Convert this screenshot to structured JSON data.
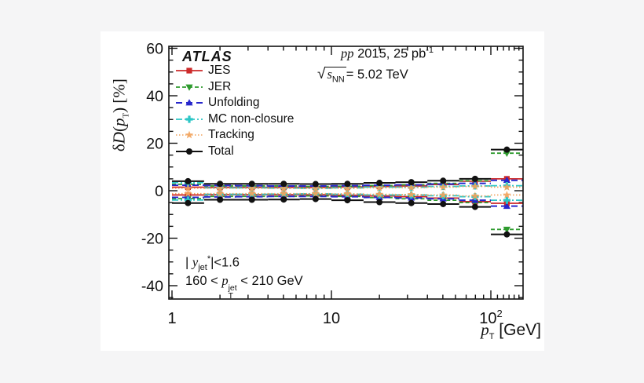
{
  "texts": {
    "atlas": "ATLAS",
    "lumi_pp": "pp",
    "lumi_rest": " 2015, 25 pb",
    "lumi_sup": "-1",
    "sqrt_sign": "√",
    "sqrt_s": "s",
    "sqrt_sub": "NN",
    "sqrt_rest": "= 5.02 TeV",
    "cut1_bar": "| ",
    "cut1_y": "y",
    "cut1_sub": "jet",
    "cut1_sup": "*",
    "cut1_rest": "|<1.6",
    "cut2_pre": "160 < ",
    "cut2_p": "p",
    "cut2_sup": "jet",
    "cut2_sub": "T",
    "cut2_rest": " < 210 GeV",
    "ylabel_delta": "δ",
    "ylabel_D": "D",
    "ylabel_open": "(",
    "ylabel_p": "p",
    "ylabel_sub": "T",
    "ylabel_close": ") [%]",
    "xlabel_p": "p",
    "xlabel_sub": "T",
    "xlabel_rest": " [GeV]"
  },
  "chart_data": {
    "type": "line",
    "title": "ATLAS jet fragmentation D(pT) systematic uncertainties, pp 2015, 25 pb-1, sqrt(sNN)=5.02 TeV, |y_jet*|<1.6, 160<pT_jet<210 GeV",
    "xlabel": "pT [GeV]",
    "ylabel": "deltaD(pT) [%]",
    "x_scale": "log",
    "x_range": [
      0.955,
      159
    ],
    "y_range": [
      -45.6,
      60.8
    ],
    "y_major_ticks": [
      -40,
      -20,
      0,
      20,
      40,
      60
    ],
    "y_minor_step": 5,
    "x_tick_labels": [
      {
        "v": 1,
        "label": "1",
        "sup": ""
      },
      {
        "v": 10,
        "label": "10",
        "sup": ""
      },
      {
        "v": 100,
        "label": "10",
        "sup": "2"
      }
    ],
    "bin_edges": [
      1.0,
      1.59,
      2.52,
      4.0,
      6.33,
      10.0,
      15.9,
      25.2,
      40.0,
      63.3,
      100,
      159
    ],
    "bin_centers": [
      1.26,
      2.0,
      3.17,
      5.02,
      7.96,
      12.6,
      20.0,
      31.7,
      50.2,
      79.6,
      126
    ],
    "legend_position": "top-left",
    "series": [
      {
        "name": "JES",
        "color": "#cd2a2a",
        "marker": "square",
        "dash": "",
        "width": 1.8,
        "upper": [
          1.5,
          1.4,
          1.4,
          1.4,
          1.4,
          1.6,
          1.8,
          2.0,
          2.6,
          4.0,
          5.0
        ],
        "lower": [
          -1.8,
          -1.7,
          -1.7,
          -1.7,
          -1.7,
          -1.9,
          -2.2,
          -2.5,
          -3.1,
          -4.6,
          -5.3
        ]
      },
      {
        "name": "JER",
        "color": "#2e9b2e",
        "marker": "triangle-down",
        "dash": "5,3",
        "width": 1.8,
        "upper": [
          2.7,
          2.0,
          2.0,
          2.0,
          1.8,
          1.9,
          2.2,
          2.5,
          3.1,
          4.2,
          15.8
        ],
        "lower": [
          -3.3,
          -2.4,
          -2.4,
          -2.4,
          -2.2,
          -2.4,
          -2.9,
          -3.4,
          -4.0,
          -5.0,
          -16.3
        ]
      },
      {
        "name": "Unfolding",
        "color": "#2727cc",
        "marker": "triangle-up",
        "dash": "8,5",
        "width": 2,
        "upper": [
          2.3,
          2.2,
          2.1,
          2.0,
          2.0,
          2.1,
          2.3,
          2.5,
          2.8,
          3.1,
          4.4
        ],
        "lower": [
          -2.8,
          -2.6,
          -2.5,
          -2.4,
          -2.4,
          -2.5,
          -2.8,
          -3.0,
          -3.4,
          -4.0,
          -6.5
        ]
      },
      {
        "name": "MC non-closure",
        "color": "#2cc6c6",
        "marker": "plus",
        "dash": "8,3,2,3",
        "width": 1.8,
        "upper": [
          3.4,
          1.2,
          1.2,
          1.1,
          1.0,
          1.2,
          1.5,
          1.5,
          1.8,
          2.0,
          2.1
        ],
        "lower": [
          -3.9,
          -1.5,
          -1.5,
          -1.4,
          -1.3,
          -1.5,
          -1.8,
          -1.8,
          -2.1,
          -2.5,
          -4.0
        ]
      },
      {
        "name": "Tracking",
        "color": "#f2a35c",
        "marker": "star",
        "dash": "1.5,2.5",
        "width": 1.6,
        "upper": [
          1.0,
          1.0,
          1.0,
          1.0,
          1.0,
          1.0,
          1.2,
          1.3,
          1.5,
          1.8,
          1.5
        ],
        "lower": [
          -1.2,
          -1.2,
          -1.2,
          -1.2,
          -1.2,
          -1.3,
          -1.5,
          -1.6,
          -1.8,
          -2.2,
          -1.8
        ]
      },
      {
        "name": "Total",
        "color": "#111111",
        "marker": "circle",
        "dash": "",
        "width": 2,
        "upper": [
          4.0,
          2.9,
          2.9,
          2.9,
          2.8,
          2.9,
          3.3,
          3.6,
          4.2,
          5.0,
          17.3
        ],
        "lower": [
          -5.2,
          -3.8,
          -3.8,
          -3.7,
          -3.5,
          -4.0,
          -4.8,
          -5.2,
          -5.6,
          -6.8,
          -18.4
        ]
      }
    ]
  }
}
